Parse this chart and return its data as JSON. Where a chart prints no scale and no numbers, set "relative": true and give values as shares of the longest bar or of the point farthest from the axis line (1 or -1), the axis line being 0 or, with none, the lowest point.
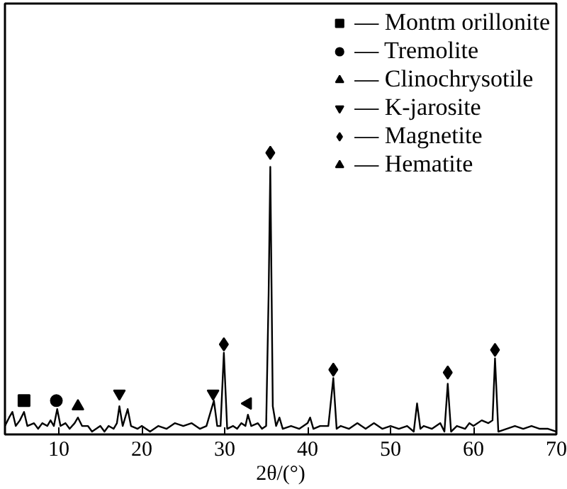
{
  "chart_data": {
    "type": "line",
    "relative": true,
    "xlabel": "2θ/(°)",
    "xlim": [
      3.5,
      70
    ],
    "xticks": [
      10,
      20,
      30,
      40,
      50,
      60,
      70
    ],
    "tick_labels": "x",
    "grid": false,
    "legend": "top right",
    "line_style": "solid",
    "marker": "none",
    "series": [
      {
        "color": "#000000",
        "x": [
          3.5,
          4.0,
          4.4,
          4.8,
          5.3,
          5.8,
          6.2,
          7,
          7.5,
          8,
          8.6,
          9.0,
          9.4,
          9.8,
          10.2,
          10.8,
          11.3,
          11.9,
          12.3,
          12.8,
          13.5,
          14,
          15,
          15.5,
          16,
          16.6,
          17.0,
          17.3,
          17.7,
          18.3,
          18.7,
          19.5,
          20,
          21,
          22,
          23,
          24,
          25,
          26,
          27,
          27.8,
          28.3,
          28.7,
          29.1,
          29.5,
          29.9,
          30.3,
          31,
          31.5,
          32,
          32.5,
          32.8,
          33.2,
          34,
          34.5,
          35,
          35.3,
          35.5,
          35.8,
          36.2,
          36.6,
          37,
          38,
          39,
          40,
          40.3,
          40.7,
          41.5,
          42.5,
          43.1,
          43.5,
          44,
          45,
          46,
          47,
          48,
          49,
          50,
          51,
          52,
          52.8,
          53.2,
          53.6,
          54,
          55,
          56,
          56.5,
          56.9,
          57.3,
          58,
          59,
          59.5,
          60,
          61,
          61.8,
          62.3,
          62.6,
          63,
          64,
          65,
          66,
          67,
          68,
          69,
          70
        ],
        "values": [
          0.03,
          0.06,
          0.08,
          0.03,
          0.05,
          0.08,
          0.03,
          0.04,
          0.02,
          0.04,
          0.03,
          0.05,
          0.03,
          0.09,
          0.03,
          0.04,
          0.02,
          0.04,
          0.06,
          0.03,
          0.03,
          0.01,
          0.03,
          0.01,
          0.03,
          0.02,
          0.04,
          0.1,
          0.03,
          0.09,
          0.03,
          0.02,
          0.03,
          0.01,
          0.03,
          0.02,
          0.04,
          0.03,
          0.04,
          0.02,
          0.03,
          0.08,
          0.12,
          0.03,
          0.03,
          0.29,
          0.02,
          0.03,
          0.02,
          0.04,
          0.03,
          0.07,
          0.03,
          0.04,
          0.02,
          0.03,
          0.5,
          0.95,
          0.1,
          0.03,
          0.06,
          0.02,
          0.03,
          0.02,
          0.04,
          0.06,
          0.02,
          0.03,
          0.03,
          0.2,
          0.02,
          0.03,
          0.02,
          0.04,
          0.02,
          0.04,
          0.02,
          0.03,
          0.02,
          0.03,
          0.01,
          0.11,
          0.02,
          0.03,
          0.02,
          0.04,
          0.01,
          0.18,
          0.01,
          0.03,
          0.02,
          0.04,
          0.03,
          0.05,
          0.04,
          0.05,
          0.27,
          0.01,
          0.02,
          0.03,
          0.02,
          0.03,
          0.02,
          0.02,
          0.01
        ]
      },
      {
        "type": "scatter",
        "name": "— Montm orillonite",
        "marker": "square",
        "color": "#000000",
        "x": [
          5.8
        ],
        "values": [
          0.12
        ]
      },
      {
        "type": "scatter",
        "name": "— Tremolite",
        "marker": "circle",
        "color": "#000000",
        "x": [
          9.7
        ],
        "values": [
          0.12
        ]
      },
      {
        "type": "scatter",
        "name": "— Clinochrysotile",
        "marker": "triangle",
        "color": "#000000",
        "x": [
          12.3
        ],
        "values": [
          0.1
        ]
      },
      {
        "type": "scatter",
        "name": "— K-jarosite",
        "marker": "triangle_down",
        "color": "#000000",
        "x": [
          17.3,
          28.6
        ],
        "values": [
          0.145,
          0.145
        ]
      },
      {
        "type": "scatter",
        "name": "— Magnetite",
        "marker": "diamond",
        "color": "#000000",
        "x": [
          29.9,
          35.5,
          43.1,
          56.9,
          62.6
        ],
        "values": [
          0.32,
          1.0,
          0.23,
          0.22,
          0.3
        ]
      },
      {
        "type": "scatter",
        "name": "— Hematite",
        "marker": "triangle_left",
        "color": "#000000",
        "x": [
          32.8
        ],
        "values": [
          0.11
        ]
      }
    ]
  }
}
